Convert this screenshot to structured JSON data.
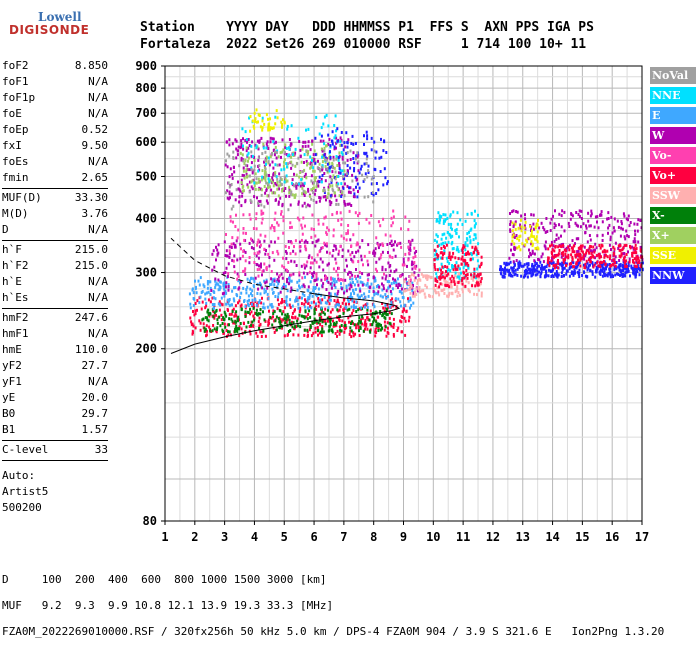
{
  "logo": {
    "line1": "Lowell",
    "line2": "DIGISONDE"
  },
  "header": {
    "line1": "Station    YYYY DAY   DDD HHMMSS P1  FFS S  AXN PPS IGA PS",
    "line2": "Fortaleza  2022 Set26 269 010000 RSF     1 714 100 10+ 11"
  },
  "params": [
    [
      {
        "k": "foF2",
        "v": "8.850"
      },
      {
        "k": "foF1",
        "v": "N/A"
      },
      {
        "k": "foF1p",
        "v": "N/A"
      },
      {
        "k": "foE",
        "v": "N/A"
      },
      {
        "k": "foEp",
        "v": "0.52"
      },
      {
        "k": "fxI",
        "v": "9.50"
      },
      {
        "k": "foEs",
        "v": "N/A"
      },
      {
        "k": "fmin",
        "v": "2.65"
      }
    ],
    [
      {
        "k": "MUF(D)",
        "v": "33.30"
      },
      {
        "k": "M(D)",
        "v": "3.76"
      },
      {
        "k": "D",
        "v": "N/A"
      }
    ],
    [
      {
        "k": "h`F",
        "v": "215.0"
      },
      {
        "k": "h`F2",
        "v": "215.0"
      },
      {
        "k": "h`E",
        "v": "N/A"
      },
      {
        "k": "h`Es",
        "v": "N/A"
      }
    ],
    [
      {
        "k": "hmF2",
        "v": "247.6"
      },
      {
        "k": "hmF1",
        "v": "N/A"
      },
      {
        "k": "hmE",
        "v": "110.0"
      },
      {
        "k": "yF2",
        "v": "27.7"
      },
      {
        "k": "yF1",
        "v": "N/A"
      },
      {
        "k": "yE",
        "v": "20.0"
      },
      {
        "k": "B0",
        "v": "29.7"
      },
      {
        "k": "B1",
        "v": "1.57"
      }
    ],
    [
      {
        "k": "C-level",
        "v": "33"
      }
    ]
  ],
  "auto": {
    "l1": "Auto:",
    "l2": "Artist5",
    "l3": "500200"
  },
  "legend": [
    {
      "label": "NoVal",
      "color": "#a0a0a0"
    },
    {
      "label": "NNE",
      "color": "#00e0ff"
    },
    {
      "label": "E",
      "color": "#3fa8ff"
    },
    {
      "label": "W",
      "color": "#b000b0"
    },
    {
      "label": "Vo-",
      "color": "#ff40b0"
    },
    {
      "label": "Vo+",
      "color": "#ff0040"
    },
    {
      "label": "SSW",
      "color": "#ffb0b0"
    },
    {
      "label": "X-",
      "color": "#00800a"
    },
    {
      "label": "X+",
      "color": "#a0d060"
    },
    {
      "label": "SSE",
      "color": "#f0f000"
    },
    {
      "label": "NNW",
      "color": "#2020ff"
    }
  ],
  "chart_data": {
    "type": "scatter",
    "x_ticks": [
      "1",
      "2",
      "3",
      "4",
      "5",
      "6",
      "7",
      "8",
      "9",
      "10",
      "11",
      "12",
      "13",
      "14",
      "15",
      "16",
      "17"
    ],
    "y_ticks": [
      "80",
      "200",
      "300",
      "400",
      "500",
      "600",
      "700",
      "800",
      "900"
    ],
    "xlim": [
      1,
      17
    ],
    "ylim": [
      80,
      900
    ],
    "y_scale": "log",
    "grid": true,
    "profile_curve": [
      {
        "f": 1.2,
        "h": 195
      },
      {
        "f": 2,
        "h": 205
      },
      {
        "f": 3,
        "h": 213
      },
      {
        "f": 4,
        "h": 220
      },
      {
        "f": 5,
        "h": 226
      },
      {
        "f": 6,
        "h": 232
      },
      {
        "f": 7,
        "h": 237
      },
      {
        "f": 8,
        "h": 241
      },
      {
        "f": 8.6,
        "h": 245
      },
      {
        "f": 8.85,
        "h": 248
      },
      {
        "f": 8.7,
        "h": 252
      },
      {
        "f": 8,
        "h": 258
      },
      {
        "f": 7,
        "h": 262
      },
      {
        "f": 6,
        "h": 268
      },
      {
        "f": 5,
        "h": 275
      },
      {
        "f": 4,
        "h": 282
      },
      {
        "f": 3,
        "h": 295
      },
      {
        "f": 2,
        "h": 320
      },
      {
        "f": 1.2,
        "h": 360
      }
    ],
    "trace_clusters": [
      {
        "color": "#ff0040",
        "f": [
          1.8,
          9.2
        ],
        "h": [
          215,
          265
        ],
        "n": 420
      },
      {
        "color": "#00800a",
        "f": [
          2.2,
          8.6
        ],
        "h": [
          220,
          250
        ],
        "n": 260
      },
      {
        "color": "#3fa8ff",
        "f": [
          1.8,
          9.3
        ],
        "h": [
          250,
          295
        ],
        "n": 380
      },
      {
        "color": "#b000b0",
        "f": [
          2.5,
          9.5
        ],
        "h": [
          270,
          360
        ],
        "n": 320
      },
      {
        "color": "#ff40b0",
        "f": [
          3,
          9.5
        ],
        "h": [
          290,
          420
        ],
        "n": 240
      },
      {
        "color": "#ffb0b0",
        "f": [
          9,
          11.6
        ],
        "h": [
          265,
          300
        ],
        "n": 140
      },
      {
        "color": "#00e0ff",
        "f": [
          10,
          11.5
        ],
        "h": [
          290,
          420
        ],
        "n": 150
      },
      {
        "color": "#ff0040",
        "f": [
          10,
          11.6
        ],
        "h": [
          280,
          350
        ],
        "n": 140
      },
      {
        "color": "#2020ff",
        "f": [
          12.2,
          17
        ],
        "h": [
          295,
          320
        ],
        "n": 380
      },
      {
        "color": "#b000b0",
        "f": [
          12.5,
          17
        ],
        "h": [
          320,
          420
        ],
        "n": 260
      },
      {
        "color": "#ff0040",
        "f": [
          13.8,
          17
        ],
        "h": [
          310,
          350
        ],
        "n": 220
      },
      {
        "color": "#f0f000",
        "f": [
          12.6,
          13.5
        ],
        "h": [
          340,
          400
        ],
        "n": 50
      },
      {
        "color": "#b000b0",
        "f": [
          3,
          7.5
        ],
        "h": [
          430,
          620
        ],
        "n": 330
      },
      {
        "color": "#a0d060",
        "f": [
          3.5,
          7
        ],
        "h": [
          450,
          600
        ],
        "n": 180
      },
      {
        "color": "#00e0ff",
        "f": [
          3.5,
          7
        ],
        "h": [
          480,
          700
        ],
        "n": 90
      },
      {
        "color": "#f0f000",
        "f": [
          3.8,
          5
        ],
        "h": [
          640,
          720
        ],
        "n": 40
      },
      {
        "color": "#2020ff",
        "f": [
          6,
          8.5
        ],
        "h": [
          450,
          650
        ],
        "n": 110
      },
      {
        "color": "#a0a0a0",
        "f": [
          3,
          8
        ],
        "h": [
          420,
          580
        ],
        "n": 120
      }
    ]
  },
  "footer": {
    "line1": "D     100  200  400  600  800 1000 1500 3000 [km]",
    "line2": "MUF   9.2  9.3  9.9 10.8 12.1 13.9 19.3 33.3 [MHz]",
    "line3": "FZA0M_2022269010000.RSF / 320fx256h 50 kHz 5.0 km / DPS-4 FZA0M 904 / 3.9 S 321.6 E   Ion2Png 1.3.20"
  }
}
